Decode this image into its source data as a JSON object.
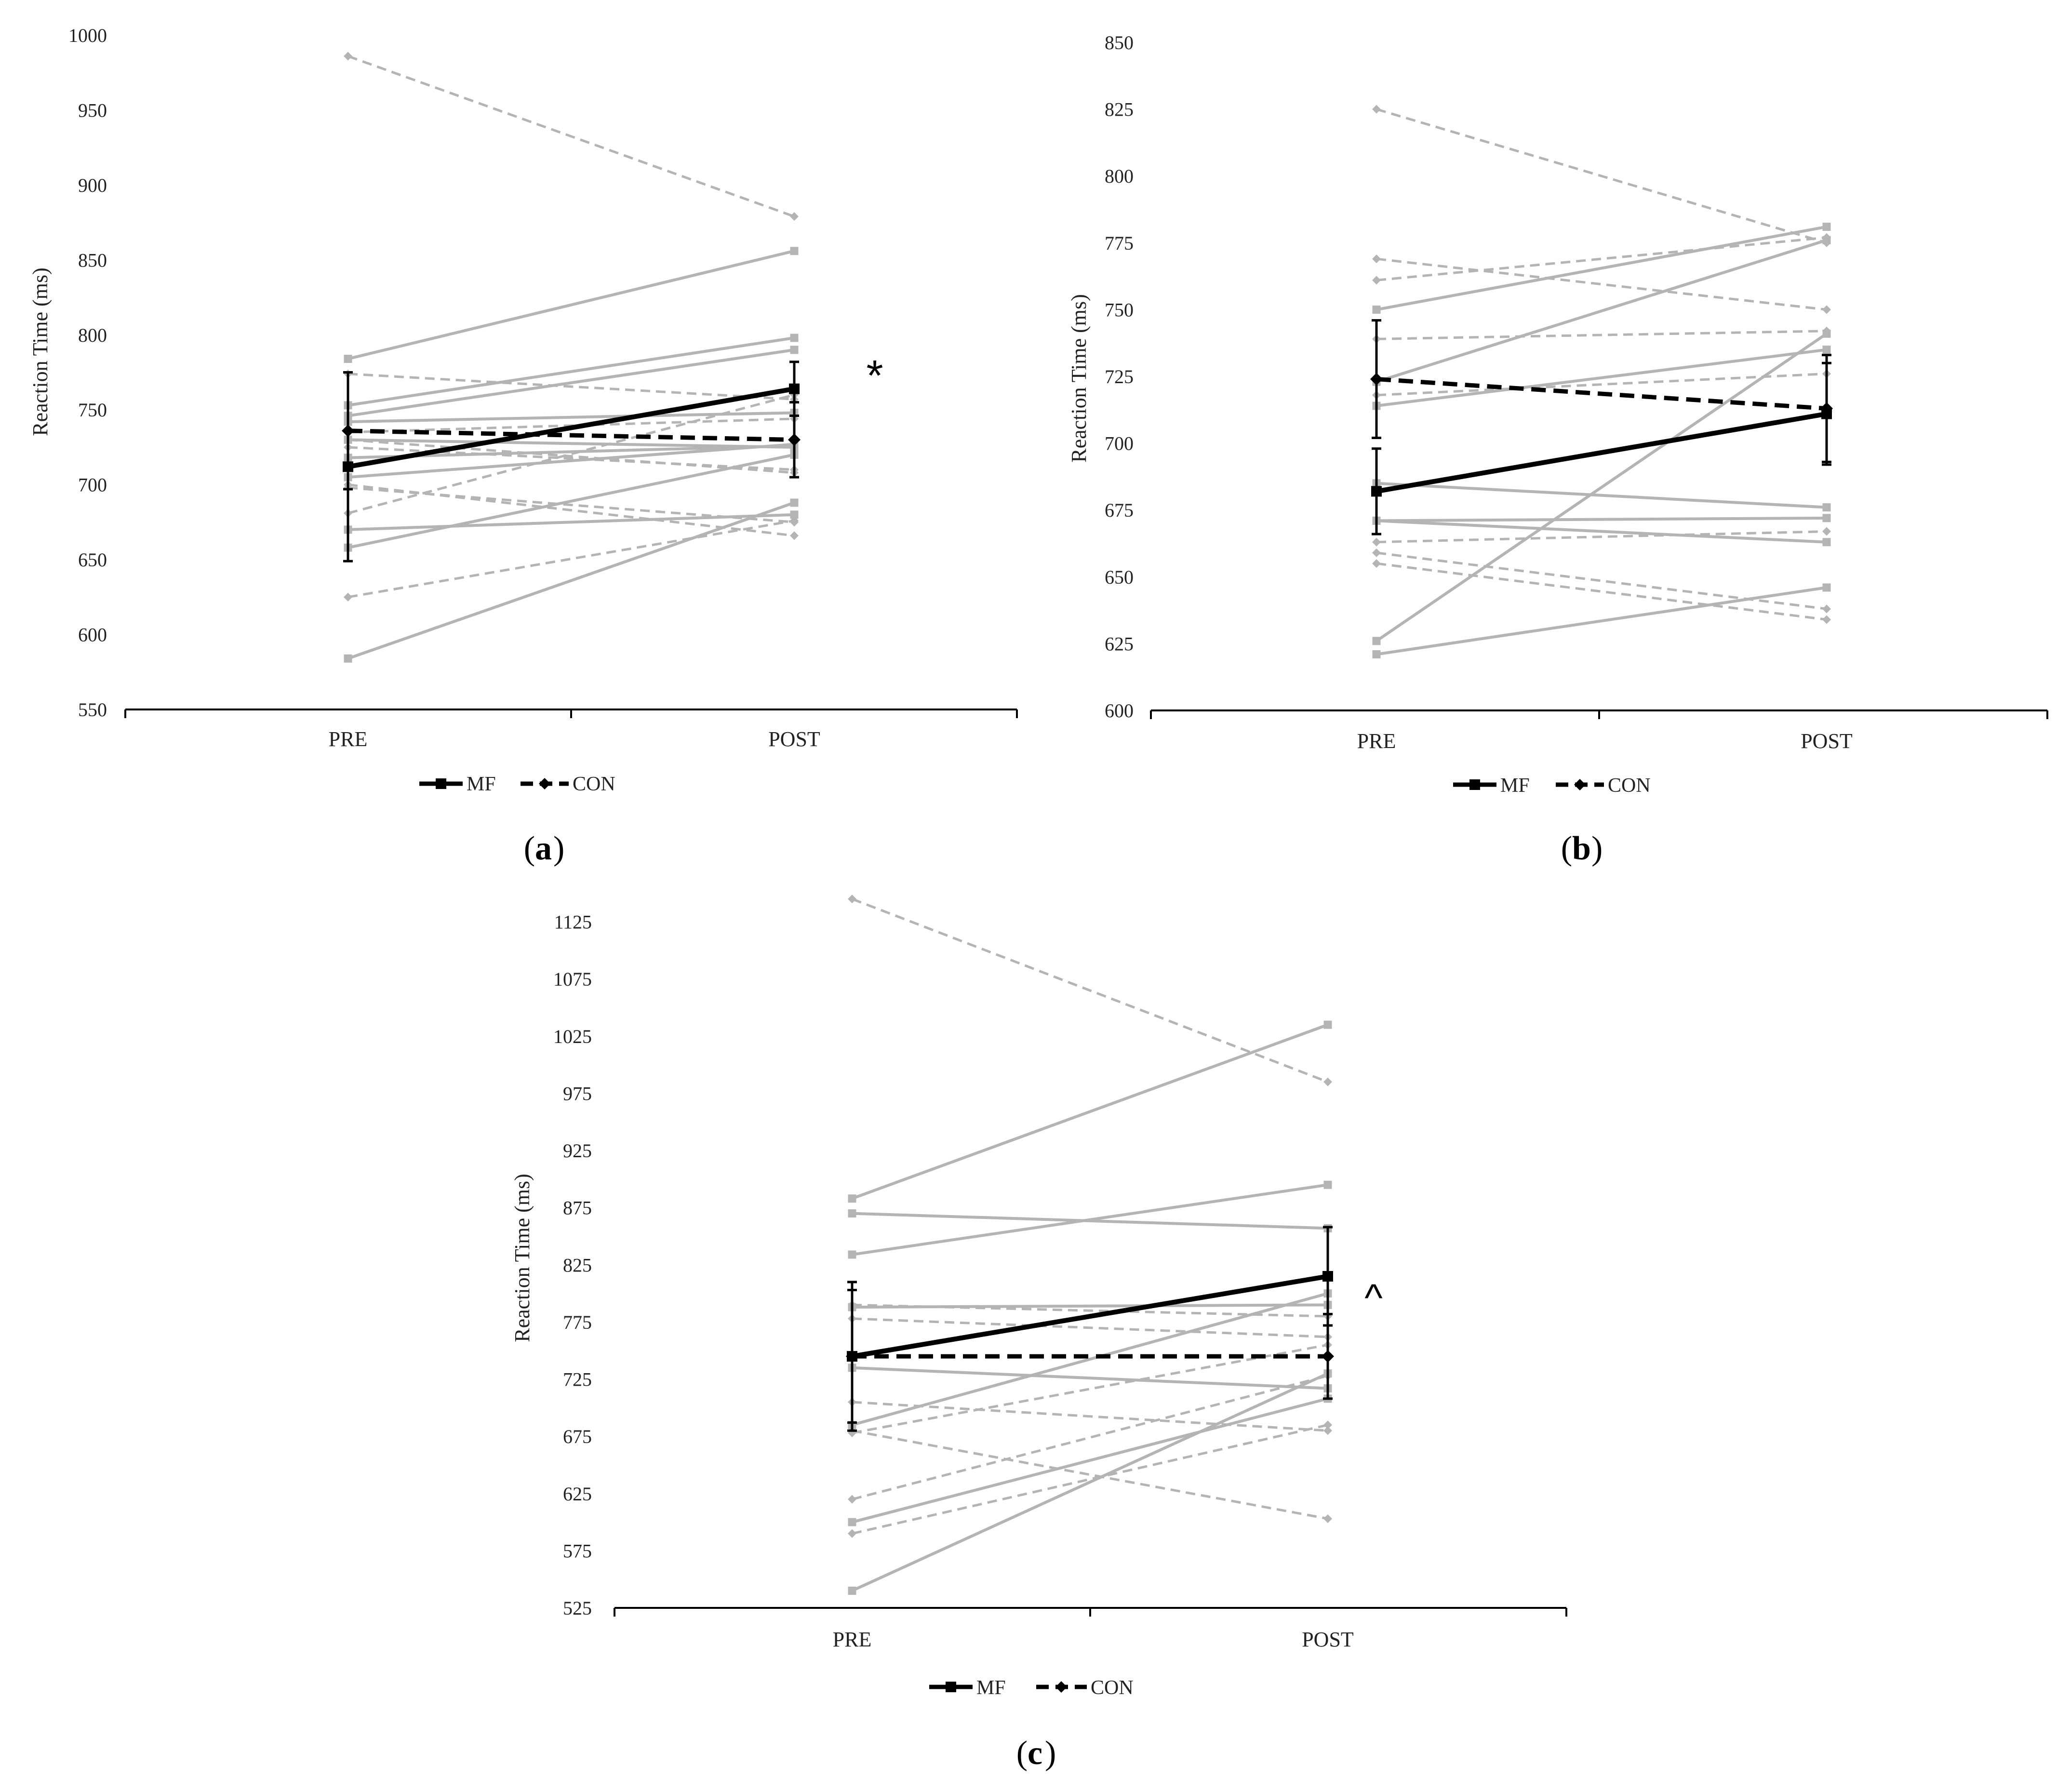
{
  "figure": {
    "grey_color": "#b4b4b4",
    "mean_color": "#000000"
  },
  "chart_data": [
    {
      "id": "a",
      "type": "line",
      "caption_letter": "a",
      "categories": [
        "PRE",
        "POST"
      ],
      "ylabel": "Reaction Time (ms)",
      "ylim": [
        550,
        1000
      ],
      "yticks": [
        550,
        600,
        650,
        700,
        750,
        800,
        850,
        900,
        950,
        1000
      ],
      "legend": [
        "MF",
        "CON"
      ],
      "annotation": "*",
      "mf_individuals": [
        [
          784,
          856
        ],
        [
          753,
          798
        ],
        [
          746,
          790
        ],
        [
          742,
          748
        ],
        [
          730,
          725
        ],
        [
          718,
          726
        ],
        [
          705,
          727
        ],
        [
          670,
          680
        ],
        [
          658,
          720
        ],
        [
          584,
          688
        ]
      ],
      "con_individuals": [
        [
          986,
          879
        ],
        [
          774,
          757
        ],
        [
          735,
          744
        ],
        [
          730,
          708
        ],
        [
          725,
          710
        ],
        [
          698,
          675
        ],
        [
          681,
          760
        ],
        [
          625,
          676
        ],
        [
          700,
          666
        ]
      ],
      "mf_mean": {
        "values": [
          712,
          764
        ],
        "error": [
          63,
          18
        ]
      },
      "con_mean": {
        "values": [
          736,
          730
        ],
        "error": [
          39,
          25
        ]
      }
    },
    {
      "id": "b",
      "type": "line",
      "caption_letter": "b",
      "categories": [
        "PRE",
        "POST"
      ],
      "ylabel": "Reaction Time (ms)",
      "ylim": [
        600,
        850
      ],
      "yticks": [
        600,
        625,
        650,
        675,
        700,
        725,
        750,
        775,
        800,
        825,
        850
      ],
      "legend": [
        "MF",
        "CON"
      ],
      "annotation": "",
      "mf_individuals": [
        [
          750,
          781
        ],
        [
          723,
          776
        ],
        [
          714,
          735
        ],
        [
          685,
          676
        ],
        [
          671,
          672
        ],
        [
          671,
          663
        ],
        [
          626,
          741
        ],
        [
          621,
          646
        ]
      ],
      "con_individuals": [
        [
          825,
          775
        ],
        [
          769,
          750
        ],
        [
          761,
          777
        ],
        [
          739,
          742
        ],
        [
          718,
          726
        ],
        [
          663,
          667
        ],
        [
          659,
          638
        ],
        [
          655,
          634
        ]
      ],
      "mf_mean": {
        "values": [
          682,
          711
        ],
        "error": [
          16,
          19
        ]
      },
      "con_mean": {
        "values": [
          724,
          713
        ],
        "error": [
          22,
          20
        ]
      }
    },
    {
      "id": "c",
      "type": "line",
      "caption_letter": "c",
      "categories": [
        "PRE",
        "POST"
      ],
      "ylabel": "Reaction Time (ms)",
      "ylim": [
        525,
        1175
      ],
      "yticks": [
        525,
        575,
        625,
        675,
        725,
        775,
        825,
        875,
        925,
        975,
        1025,
        1075,
        1125
      ],
      "legend": [
        "MF",
        "CON"
      ],
      "annotation": "^",
      "mf_individuals": [
        [
          883,
          1035
        ],
        [
          870,
          857
        ],
        [
          834,
          895
        ],
        [
          788,
          790
        ],
        [
          735,
          717
        ],
        [
          685,
          800
        ],
        [
          600,
          708
        ],
        [
          540,
          730
        ]
      ],
      "con_individuals": [
        [
          1145,
          985
        ],
        [
          790,
          780
        ],
        [
          778,
          762
        ],
        [
          705,
          680
        ],
        [
          680,
          603
        ],
        [
          678,
          755
        ],
        [
          620,
          728
        ],
        [
          590,
          685
        ]
      ],
      "mf_mean": {
        "values": [
          745,
          815
        ],
        "error": [
          65,
          43
        ]
      },
      "con_mean": {
        "values": [
          745,
          745
        ],
        "error": [
          58,
          37
        ]
      }
    }
  ]
}
